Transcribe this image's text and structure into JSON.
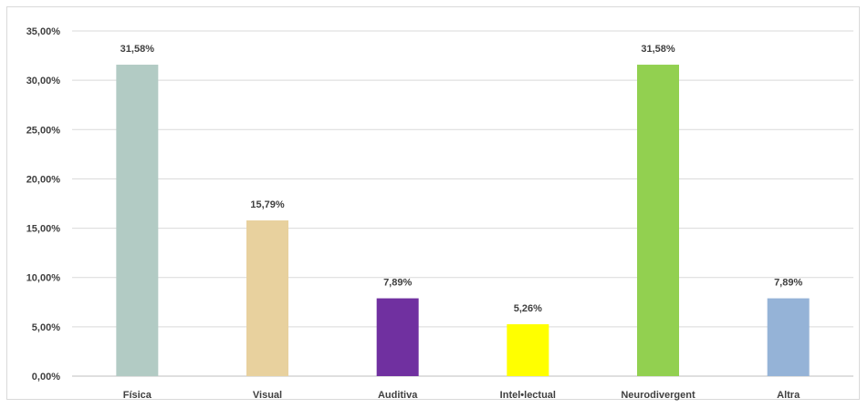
{
  "chart_data": {
    "type": "bar",
    "categories": [
      "Física",
      "Visual",
      "Auditiva",
      "Intel•lectual",
      "Neurodivergent",
      "Altra"
    ],
    "values": [
      31.58,
      15.79,
      7.89,
      5.26,
      31.58,
      7.89
    ],
    "data_labels": [
      "31,58%",
      "15,79%",
      "7,89%",
      "5,26%",
      "31,58%",
      "7,89%"
    ],
    "colors": [
      "#b2cbc4",
      "#e8d19e",
      "#7030a0",
      "#ffff00",
      "#92d050",
      "#95b3d7"
    ],
    "yticks": [
      0,
      5,
      10,
      15,
      20,
      25,
      30,
      35
    ],
    "ytick_labels": [
      "0,00%",
      "5,00%",
      "10,00%",
      "15,00%",
      "20,00%",
      "25,00%",
      "30,00%",
      "35,00%"
    ],
    "ylim": [
      0,
      35
    ],
    "grid": true,
    "title": "",
    "xlabel": "",
    "ylabel": ""
  }
}
